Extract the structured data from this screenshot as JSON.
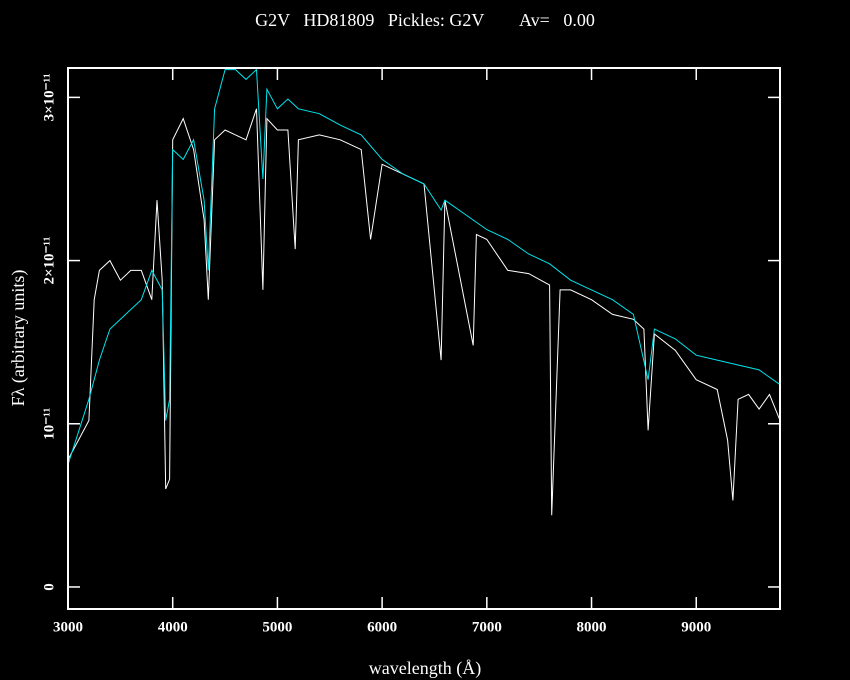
{
  "chart_data": {
    "type": "line",
    "title": "G2V   HD81809   Pickles: G2V        Av=   0.00",
    "x_label": "wavelength (Å)",
    "y_label": "Fλ (arbitrary units)",
    "xlim": [
      3000,
      9800
    ],
    "ylim": [
      -1.35e-12,
      3.18e-11
    ],
    "xticks": [
      3000,
      4000,
      5000,
      6000,
      7000,
      8000,
      9000
    ],
    "yticks": [
      0,
      {
        "value": 1e-11,
        "label": "10⁻¹¹"
      },
      {
        "value": 2e-11,
        "label": "2×10⁻¹¹"
      },
      {
        "value": 3e-11,
        "label": "3×10⁻¹¹"
      }
    ],
    "series": [
      {
        "color": "#ffffff",
        "x": [
          3000,
          3100,
          3200,
          3250,
          3300,
          3400,
          3500,
          3600,
          3700,
          3800,
          3850,
          3900,
          3933,
          3970,
          4000,
          4100,
          4200,
          4300,
          4340,
          4400,
          4500,
          4600,
          4700,
          4800,
          4861,
          4900,
          5000,
          5100,
          5170,
          5200,
          5400,
          5600,
          5800,
          5890,
          6000,
          6200,
          6400,
          6563,
          6600,
          6870,
          6900,
          7000,
          7200,
          7400,
          7600,
          7620,
          7700,
          7800,
          8000,
          8200,
          8400,
          8500,
          8540,
          8600,
          8800,
          9000,
          9200,
          9300,
          9350,
          9400,
          9500,
          9600,
          9700,
          9800
        ],
        "values": [
          7.8e-12,
          9e-12,
          1.02e-11,
          1.76e-11,
          1.94e-11,
          2e-11,
          1.88e-11,
          1.94e-11,
          1.94e-11,
          1.76e-11,
          2.37e-11,
          1.88e-11,
          6e-12,
          6.6e-12,
          2.74e-11,
          2.87e-11,
          2.68e-11,
          2.25e-11,
          1.76e-11,
          2.74e-11,
          2.8e-11,
          2.77e-11,
          2.74e-11,
          2.93e-11,
          1.82e-11,
          2.87e-11,
          2.8e-11,
          2.8e-11,
          2.07e-11,
          2.74e-11,
          2.77e-11,
          2.74e-11,
          2.68e-11,
          2.13e-11,
          2.59e-11,
          2.53e-11,
          2.47e-11,
          1.39e-11,
          2.37e-11,
          1.48e-11,
          2.16e-11,
          2.13e-11,
          1.94e-11,
          1.92e-11,
          1.85e-11,
          4.4e-12,
          1.82e-11,
          1.82e-11,
          1.76e-11,
          1.67e-11,
          1.64e-11,
          1.58e-11,
          9.6e-12,
          1.55e-11,
          1.45e-11,
          1.27e-11,
          1.21e-11,
          9e-12,
          5.3e-12,
          1.15e-11,
          1.18e-11,
          1.09e-11,
          1.18e-11,
          1.02e-11
        ]
      },
      {
        "color": "#00e5ee",
        "x": [
          3000,
          3200,
          3300,
          3400,
          3500,
          3600,
          3700,
          3800,
          3900,
          3933,
          3970,
          4000,
          4100,
          4200,
          4300,
          4340,
          4400,
          4500,
          4600,
          4700,
          4800,
          4861,
          4900,
          5000,
          5100,
          5200,
          5400,
          5600,
          5800,
          6000,
          6200,
          6400,
          6563,
          6600,
          6800,
          7000,
          7200,
          7400,
          7600,
          7800,
          8000,
          8200,
          8400,
          8540,
          8600,
          8800,
          9000,
          9200,
          9400,
          9600,
          9800
        ],
        "values": [
          7.5e-12,
          1.15e-11,
          1.39e-11,
          1.58e-11,
          1.64e-11,
          1.7e-11,
          1.76e-11,
          1.94e-11,
          1.82e-11,
          1.02e-11,
          1.15e-11,
          2.68e-11,
          2.62e-11,
          2.74e-11,
          2.37e-11,
          1.94e-11,
          2.93e-11,
          3.17e-11,
          3.17e-11,
          3.11e-11,
          3.17e-11,
          2.5e-11,
          3.05e-11,
          2.93e-11,
          2.99e-11,
          2.93e-11,
          2.9e-11,
          2.83e-11,
          2.77e-11,
          2.62e-11,
          2.53e-11,
          2.47e-11,
          2.31e-11,
          2.37e-11,
          2.28e-11,
          2.19e-11,
          2.13e-11,
          2.04e-11,
          1.98e-11,
          1.88e-11,
          1.82e-11,
          1.76e-11,
          1.67e-11,
          1.27e-11,
          1.58e-11,
          1.52e-11,
          1.42e-11,
          1.39e-11,
          1.36e-11,
          1.33e-11,
          1.24e-11
        ]
      }
    ]
  }
}
